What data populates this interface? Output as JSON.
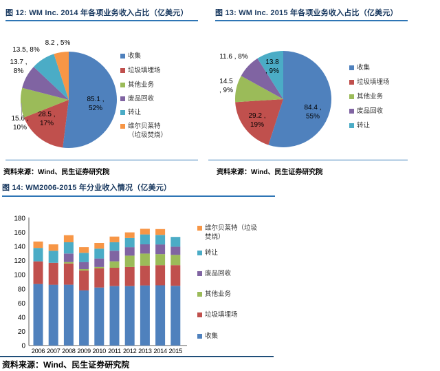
{
  "colors": {
    "accent_line": "#2e75b5",
    "title_text": "#17375e",
    "axis_line": "#595959",
    "series": {
      "收集": "#4f81bd",
      "垃圾填埋场": "#c0504d",
      "其他业务": "#9bbb59",
      "废品回收": "#8064a2",
      "转让": "#4bacc6",
      "维尔贝莱特（垃圾焚烧）": "#f79646"
    }
  },
  "fig12": {
    "title": "图 12: WM Inc. 2014 年各项业务收入占比（亿美元）",
    "source": "资料来源：Wind、民生证券研究院",
    "legend": [
      "收集",
      "垃圾填埋场",
      "其他业务",
      "废品回收",
      "转让",
      "维尔贝莱特（垃圾焚烧）"
    ]
  },
  "fig13": {
    "title": "图 13: WM Inc. 2015 年各项业务收入占比（亿美元）",
    "source": "资料来源：Wind、民生证券研究院",
    "legend": [
      "收集",
      "垃圾填埋场",
      "其他业务",
      "废品回收",
      "转让"
    ]
  },
  "fig14": {
    "title": "图 14: WM2006-2015 年分业收入情况（亿美元）",
    "source": "资料来源：Wind、民生证券研究院",
    "legend": [
      "维尔贝莱特（垃圾焚烧）",
      "转让",
      "废品回收",
      "其他业务",
      "垃圾填埋场",
      "收集"
    ]
  },
  "chart_data": [
    {
      "id": "pie2014",
      "type": "pie",
      "title": "图 12: WM Inc. 2014 年各项业务收入占比（亿美元）",
      "unit": "亿美元",
      "labels": [
        "收集",
        "垃圾填埋场",
        "其他业务",
        "废品回收",
        "转让",
        "维尔贝莱特（垃圾焚烧）"
      ],
      "values": [
        85.1,
        28.5,
        15.6,
        13.7,
        13.5,
        8.2
      ],
      "percents": [
        52,
        17,
        10,
        8,
        8,
        5
      ],
      "colors": [
        "#4f81bd",
        "#c0504d",
        "#9bbb59",
        "#8064a2",
        "#4bacc6",
        "#f79646"
      ],
      "labels_display": [
        [
          "85.1 ,",
          "52%"
        ],
        [
          "28.5 ,",
          "17%"
        ],
        [
          "15.6 ,",
          "10%"
        ],
        [
          "13.7 ,",
          "8%"
        ],
        [
          "13.5, 8%"
        ],
        [
          "8.2 , 5%"
        ]
      ],
      "start_angle_deg": 0,
      "direction": "clockwise",
      "legend_position": "right"
    },
    {
      "id": "pie2015",
      "type": "pie",
      "title": "图 13: WM Inc. 2015 年各项业务收入占比（亿美元）",
      "unit": "亿美元",
      "labels": [
        "收集",
        "垃圾填埋场",
        "其他业务",
        "废品回收",
        "转让"
      ],
      "values": [
        84.4,
        29.2,
        14.5,
        11.6,
        13.8
      ],
      "percents": [
        55,
        19,
        9,
        8,
        9
      ],
      "colors": [
        "#4f81bd",
        "#c0504d",
        "#9bbb59",
        "#8064a2",
        "#4bacc6"
      ],
      "labels_display": [
        [
          "84.4 ,",
          "55%"
        ],
        [
          "29.2 ,",
          "19%"
        ],
        [
          "14.5",
          ", 9%"
        ],
        [
          "11.6 , 8%"
        ],
        [
          "13.8",
          ", 9%"
        ]
      ],
      "start_angle_deg": 0,
      "direction": "clockwise",
      "legend_position": "right"
    },
    {
      "id": "bar20062015",
      "type": "bar",
      "stacked": true,
      "title": "图 14: WM2006-2015 年分业收入情况（亿美元）",
      "unit": "亿美元",
      "categories": [
        "2006",
        "2007",
        "2008",
        "2009",
        "2010",
        "2011",
        "2012",
        "2013",
        "2014",
        "2015"
      ],
      "series": [
        {
          "name": "收集",
          "color": "#4f81bd",
          "values": [
            87,
            86,
            86,
            78,
            82,
            84,
            84,
            85,
            85.1,
            84.4
          ]
        },
        {
          "name": "垃圾填埋场",
          "color": "#c0504d",
          "values": [
            32,
            31,
            30,
            28,
            27,
            26,
            27,
            28,
            28.5,
            29.2
          ]
        },
        {
          "name": "其他业务",
          "color": "#9bbb59",
          "values": [
            0,
            0,
            2,
            2,
            2,
            9,
            16,
            17,
            15.6,
            14.5
          ]
        },
        {
          "name": "废品回收",
          "color": "#8064a2",
          "values": [
            0,
            0,
            12,
            10,
            12,
            15,
            12,
            13,
            13.7,
            11.6
          ]
        },
        {
          "name": "转让",
          "color": "#4bacc6",
          "values": [
            19,
            17,
            16,
            13,
            14,
            12,
            13,
            14,
            13.5,
            13.8
          ]
        },
        {
          "name": "维尔贝莱特（垃圾焚烧）",
          "color": "#f79646",
          "values": [
            9,
            9,
            10,
            8,
            8,
            8,
            8,
            8,
            8.2,
            0
          ]
        }
      ],
      "ylim": [
        0,
        180
      ],
      "ytick_step": 20,
      "grid": false,
      "legend_position": "right",
      "legend_order": "reversed"
    }
  ]
}
